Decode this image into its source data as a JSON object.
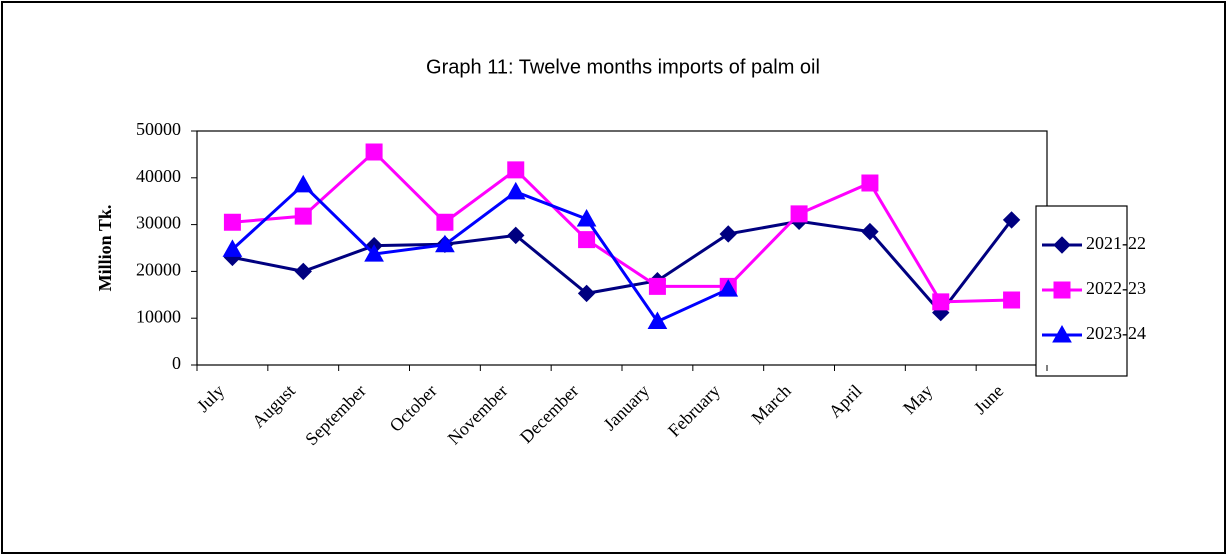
{
  "chart_data": {
    "type": "line",
    "title": "Graph 11: Twelve months imports of palm oil",
    "y_label": "Million Tk.",
    "categories": [
      "July",
      "August",
      "September",
      "October",
      "November",
      "December",
      "January",
      "February",
      "March",
      "April",
      "May",
      "June"
    ],
    "series": [
      {
        "name": "2021-22",
        "color": "#000080",
        "marker": "diamond",
        "values": [
          23000,
          20000,
          25500,
          25800,
          27700,
          15300,
          18000,
          28000,
          30700,
          28500,
          11200,
          31000
        ]
      },
      {
        "name": "2022-23",
        "color": "#ff00ff",
        "marker": "square",
        "values": [
          30500,
          31800,
          45500,
          30500,
          41700,
          26800,
          16800,
          16800,
          32300,
          38900,
          13500,
          13900
        ]
      },
      {
        "name": "2023-24",
        "color": "#0000ff",
        "marker": "triangle",
        "values": [
          24700,
          38500,
          23700,
          25700,
          37000,
          31200,
          9300,
          16200,
          null,
          null,
          null,
          null
        ]
      }
    ],
    "ylim": [
      0,
      50000
    ],
    "yticks": [
      0,
      10000,
      20000,
      30000,
      40000,
      50000
    ],
    "legend": "right"
  }
}
